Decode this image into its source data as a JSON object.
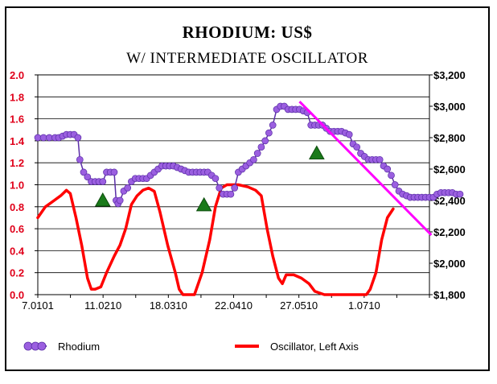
{
  "chart_data": {
    "type": "line",
    "title": "RHODIUM: US$",
    "subtitle": "W/ INTERMEDIATE OSCILLATOR",
    "colors": {
      "rhodium_marker": "#9b5fe0",
      "rhodium_line": "#5a2ea6",
      "oscillator": "#ff0000",
      "trendline": "#ff00ff",
      "signal": "#1a7a1a",
      "left_axis": "#e0001a"
    },
    "x_axis": {
      "min_day": 0,
      "max_day": 205,
      "tick_labels": [
        "7.0101",
        "11.0210",
        "18.0310",
        "22.0410",
        "27.0510",
        "1.0710"
      ]
    },
    "left_axis": {
      "min": 0,
      "max": 2.0,
      "tick_labels": [
        "0.0",
        "0.2",
        "0.4",
        "0.6",
        "0.8",
        "1.0",
        "1.2",
        "1.4",
        "1.6",
        "1.8",
        "2.0"
      ]
    },
    "right_axis": {
      "min": 1800,
      "max": 3200,
      "tick_labels": [
        "$1,800",
        "$2,000",
        "$2,200",
        "$2,400",
        "$2,600",
        "$2,800",
        "$3,000",
        "$3,200"
      ]
    },
    "grid": true,
    "legend_position": "bottom",
    "series": [
      {
        "name": "Rhodium",
        "axis": "right",
        "points": [
          [
            0,
            2800
          ],
          [
            3,
            2800
          ],
          [
            6,
            2800
          ],
          [
            9,
            2800
          ],
          [
            11,
            2800
          ],
          [
            13,
            2810
          ],
          [
            15,
            2820
          ],
          [
            17,
            2820
          ],
          [
            19,
            2820
          ],
          [
            21,
            2800
          ],
          [
            22,
            2660
          ],
          [
            24,
            2580
          ],
          [
            26,
            2550
          ],
          [
            28,
            2520
          ],
          [
            30,
            2520
          ],
          [
            32,
            2520
          ],
          [
            34,
            2520
          ],
          [
            36,
            2580
          ],
          [
            38,
            2580
          ],
          [
            40,
            2580
          ],
          [
            41,
            2400
          ],
          [
            42,
            2380
          ],
          [
            43,
            2400
          ],
          [
            45,
            2460
          ],
          [
            47,
            2480
          ],
          [
            49,
            2520
          ],
          [
            51,
            2540
          ],
          [
            53,
            2540
          ],
          [
            55,
            2540
          ],
          [
            57,
            2540
          ],
          [
            59,
            2560
          ],
          [
            61,
            2580
          ],
          [
            63,
            2600
          ],
          [
            65,
            2620
          ],
          [
            67,
            2620
          ],
          [
            69,
            2620
          ],
          [
            71,
            2620
          ],
          [
            73,
            2610
          ],
          [
            75,
            2600
          ],
          [
            77,
            2590
          ],
          [
            79,
            2580
          ],
          [
            81,
            2580
          ],
          [
            83,
            2580
          ],
          [
            85,
            2580
          ],
          [
            87,
            2580
          ],
          [
            89,
            2580
          ],
          [
            91,
            2560
          ],
          [
            93,
            2540
          ],
          [
            95,
            2480
          ],
          [
            97,
            2440
          ],
          [
            99,
            2440
          ],
          [
            101,
            2440
          ],
          [
            103,
            2480
          ],
          [
            105,
            2580
          ],
          [
            107,
            2600
          ],
          [
            109,
            2620
          ],
          [
            111,
            2640
          ],
          [
            113,
            2660
          ],
          [
            115,
            2700
          ],
          [
            117,
            2740
          ],
          [
            119,
            2780
          ],
          [
            121,
            2830
          ],
          [
            123,
            2880
          ],
          [
            125,
            2980
          ],
          [
            127,
            3000
          ],
          [
            129,
            3000
          ],
          [
            131,
            2980
          ],
          [
            133,
            2980
          ],
          [
            135,
            2980
          ],
          [
            137,
            2980
          ],
          [
            139,
            2970
          ],
          [
            141,
            2960
          ],
          [
            143,
            2880
          ],
          [
            145,
            2880
          ],
          [
            147,
            2880
          ],
          [
            149,
            2880
          ],
          [
            151,
            2860
          ],
          [
            153,
            2840
          ],
          [
            155,
            2840
          ],
          [
            157,
            2840
          ],
          [
            159,
            2840
          ],
          [
            161,
            2830
          ],
          [
            163,
            2820
          ],
          [
            165,
            2760
          ],
          [
            167,
            2740
          ],
          [
            169,
            2700
          ],
          [
            171,
            2680
          ],
          [
            173,
            2660
          ],
          [
            175,
            2660
          ],
          [
            177,
            2660
          ],
          [
            179,
            2660
          ],
          [
            181,
            2620
          ],
          [
            183,
            2600
          ],
          [
            185,
            2560
          ],
          [
            187,
            2500
          ],
          [
            189,
            2460
          ],
          [
            191,
            2440
          ],
          [
            193,
            2430
          ],
          [
            195,
            2420
          ],
          [
            197,
            2420
          ],
          [
            199,
            2420
          ],
          [
            201,
            2420
          ],
          [
            203,
            2420
          ],
          [
            205,
            2420
          ],
          [
            207,
            2420
          ],
          [
            209,
            2440
          ],
          [
            211,
            2450
          ],
          [
            213,
            2450
          ],
          [
            215,
            2450
          ],
          [
            217,
            2450
          ],
          [
            219,
            2440
          ],
          [
            221,
            2440
          ]
        ]
      },
      {
        "name": "Oscillator, Left Axis",
        "axis": "left",
        "points": [
          [
            0,
            0.7
          ],
          [
            4,
            0.8
          ],
          [
            8,
            0.85
          ],
          [
            12,
            0.9
          ],
          [
            15,
            0.95
          ],
          [
            17,
            0.92
          ],
          [
            20,
            0.7
          ],
          [
            23,
            0.45
          ],
          [
            26,
            0.15
          ],
          [
            28,
            0.05
          ],
          [
            30,
            0.05
          ],
          [
            33,
            0.07
          ],
          [
            36,
            0.2
          ],
          [
            40,
            0.35
          ],
          [
            43,
            0.45
          ],
          [
            46,
            0.6
          ],
          [
            49,
            0.82
          ],
          [
            52,
            0.9
          ],
          [
            55,
            0.95
          ],
          [
            58,
            0.97
          ],
          [
            61,
            0.94
          ],
          [
            64,
            0.75
          ],
          [
            68,
            0.45
          ],
          [
            72,
            0.2
          ],
          [
            74,
            0.05
          ],
          [
            76,
            0.0
          ],
          [
            82,
            0.0
          ],
          [
            86,
            0.2
          ],
          [
            90,
            0.5
          ],
          [
            93,
            0.8
          ],
          [
            96,
            0.97
          ],
          [
            99,
            1.0
          ],
          [
            105,
            1.0
          ],
          [
            110,
            0.98
          ],
          [
            114,
            0.95
          ],
          [
            117,
            0.9
          ],
          [
            120,
            0.6
          ],
          [
            123,
            0.35
          ],
          [
            126,
            0.15
          ],
          [
            128,
            0.1
          ],
          [
            130,
            0.18
          ],
          [
            134,
            0.18
          ],
          [
            138,
            0.15
          ],
          [
            142,
            0.1
          ],
          [
            145,
            0.03
          ],
          [
            150,
            0.0
          ],
          [
            172,
            0.0
          ],
          [
            174,
            0.05
          ],
          [
            177,
            0.2
          ],
          [
            180,
            0.5
          ],
          [
            183,
            0.7
          ],
          [
            186,
            0.78
          ]
        ]
      },
      {
        "name": "Trend line",
        "axis": "right",
        "style": "line",
        "points": [
          [
            137,
            3030
          ],
          [
            206,
            2180
          ]
        ]
      }
    ],
    "signal_markers": [
      {
        "day": 34,
        "value": 2400
      },
      {
        "day": 87,
        "value": 2370
      },
      {
        "day": 146,
        "value": 2700
      }
    ]
  },
  "legend": {
    "rhodium_label": "Rhodium",
    "oscillator_label": "Oscillator, Left Axis"
  }
}
